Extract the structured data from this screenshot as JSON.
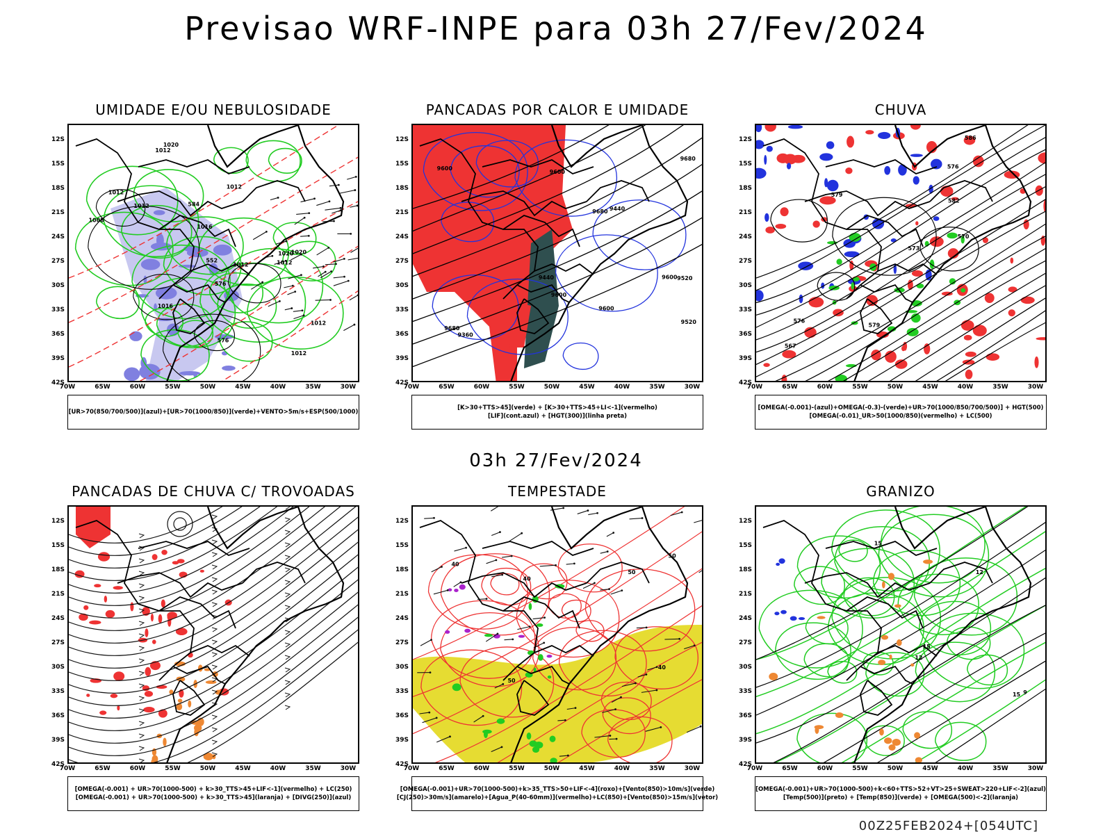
{
  "header": {
    "title": "Previsao WRF-INPE  para 03h 27/Fev/2024",
    "mid_title": "03h 27/Fev/2024",
    "footer": "00Z25FEB2024+[054UTC]"
  },
  "axes": {
    "y_ticks": [
      "12S",
      "15S",
      "18S",
      "21S",
      "24S",
      "27S",
      "30S",
      "33S",
      "36S",
      "39S",
      "42S"
    ],
    "x_ticks": [
      "70W",
      "65W",
      "60W",
      "55W",
      "50W",
      "45W",
      "40W",
      "35W",
      "30W"
    ]
  },
  "colors": {
    "red": "#ee3333",
    "blue": "#2233dd",
    "green": "#22cc22",
    "lavender": "#c8c8f0",
    "yellow": "#e6dc32",
    "orange": "#ee8833",
    "teal": "#2f4f4f",
    "purple": "#aa22cc"
  },
  "panels": [
    {
      "title": "UMIDADE E/OU NEBULOSIDADE",
      "legend": [
        "[UR>70(850/700/500)](azul)+[UR>70(1000/850)](verde)+VENTO>5m/s+ESP(500/1000)"
      ],
      "contour_labels": [
        "1012",
        "1012",
        "1016",
        "1012",
        "1016",
        "1012",
        "1008",
        "1012",
        "1012",
        "1012",
        "1020",
        "1020",
        "1012",
        "1020",
        "576",
        "576",
        "584",
        "552"
      ]
    },
    {
      "title": "PANCADAS POR CALOR E UMIDADE",
      "legend": [
        "[K>30+TTS>45](verde) + [K>30+TTS>45+LI<-1](vermelho)",
        "[LIF](cont.azul) + [HGT(300)](linha preta)"
      ],
      "contour_labels": [
        "9600",
        "9600",
        "9680",
        "9680",
        "9600",
        "9680",
        "9600",
        "9600",
        "9520",
        "9520",
        "9440",
        "9440",
        "9360"
      ]
    },
    {
      "title": "CHUVA",
      "legend": [
        "[OMEGA(-0.001)-(azul)+OMEGA(-0.3)-(verde)+UR>70(1000/850/700/500)] + HGT(500)",
        "[OMEGA(-0.01)_UR>50(1000/850)(vermelho) + LC(500)"
      ],
      "contour_labels": [
        "586",
        "579",
        "582",
        "576",
        "573",
        "570",
        "567",
        "579",
        "576"
      ]
    },
    {
      "title": "PANCADAS DE CHUVA C/ TROVOADAS",
      "legend": [
        "[OMEGA(-0.001) + UR>70(1000-500) + k>30_TTS>45+LIF<-1](vermelho) + LC(250)",
        "[OMEGA(-0.001) + UR>70(1000-500) + k>30_TTS>45](laranja) + [DIVG(250)](azul)"
      ],
      "contour_labels": []
    },
    {
      "title": "TEMPESTADE",
      "legend": [
        "[OMEGA(-0.001)+UR>70(1000-500)+k>35_TTS>50+LIF<-4](roxo)+[Vento(850)>10m/s](verde)",
        "[CJ(250)>30m/s](amarelo)+[Agua_P(40-60mm)](vermelho)+LC(850)+[Vento(850)>15m/s](vetor)"
      ],
      "contour_labels": [
        "50",
        "40",
        "50",
        "40",
        "50",
        "40"
      ]
    },
    {
      "title": "GRANIZO",
      "legend": [
        "[OMEGA(-0.001)+UR>70(1000-500)+k<60+TTS>52+VT>25+SWEAT>220+LIF<-2](azul)",
        "[Temp(500)](preto) + [Temp(850)](verde) + [OMEGA(500)<-2](laranja)"
      ],
      "contour_labels": [
        "15",
        "15",
        "12",
        "12",
        "15",
        "9"
      ]
    }
  ]
}
